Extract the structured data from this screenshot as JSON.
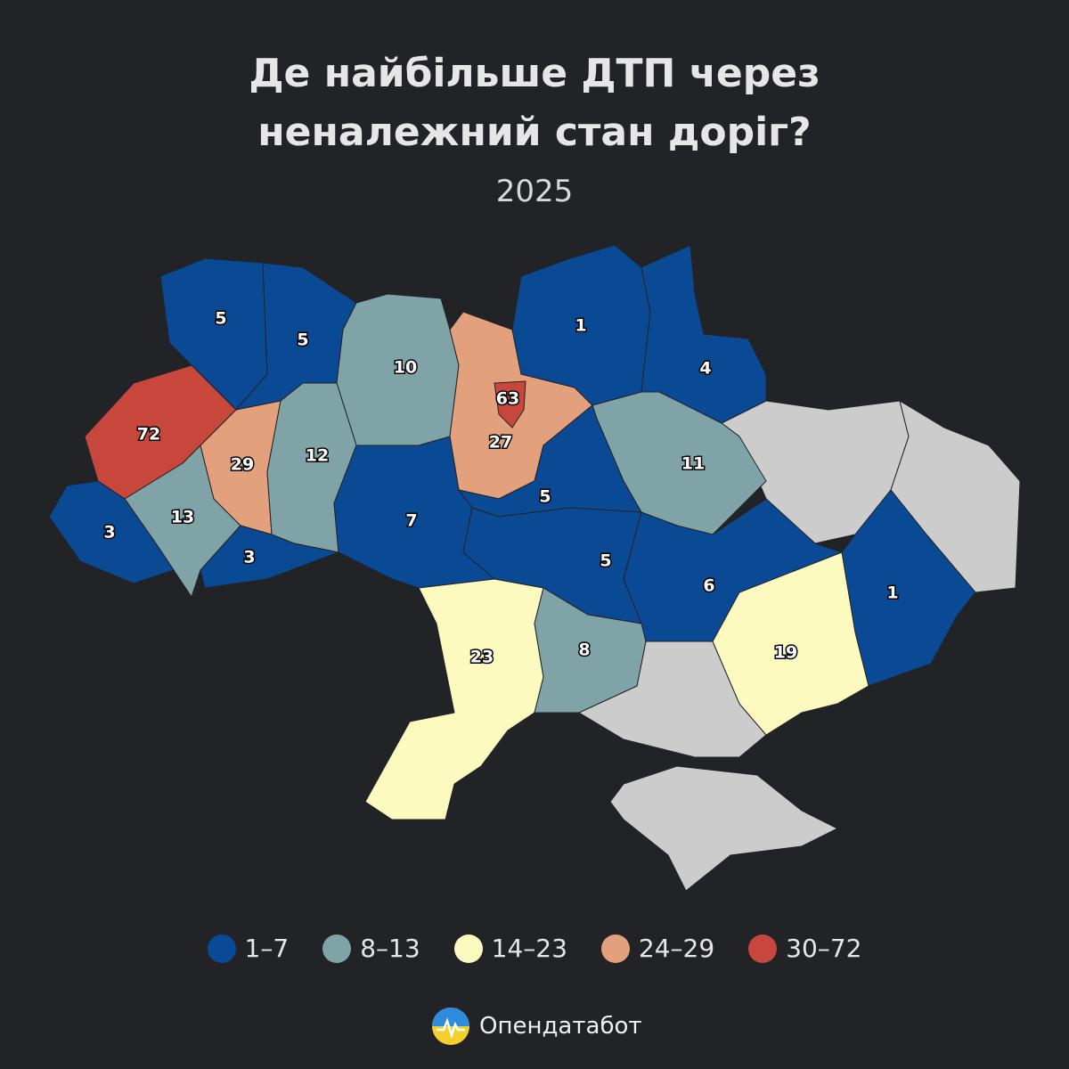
{
  "title": "Де найбільше ДТП через неналежний стан доріг?",
  "subtitle": "2025",
  "regions": [
    {
      "value": 5,
      "color": "#0a4a94"
    },
    {
      "value": 5,
      "color": "#0a4a94"
    },
    {
      "value": 10,
      "color": "#7fa3a6"
    },
    {
      "value": 63,
      "color": "#c8473c"
    },
    {
      "value": 27,
      "color": "#e3a07c"
    },
    {
      "value": 1,
      "color": "#0a4a94"
    },
    {
      "value": 4,
      "color": "#0a4a94"
    },
    {
      "value": 11,
      "color": "#7fa3a6"
    },
    {
      "value": 72,
      "color": "#c8473c"
    },
    {
      "value": 13,
      "color": "#7fa3a6"
    },
    {
      "value": 29,
      "color": "#e3a07c"
    },
    {
      "value": 12,
      "color": "#7fa3a6"
    },
    {
      "value": 3,
      "color": "#0a4a94"
    },
    {
      "value": 3,
      "color": "#0a4a94"
    },
    {
      "value": 7,
      "color": "#0a4a94"
    },
    {
      "value": 5,
      "color": "#0a4a94"
    },
    {
      "value": 5,
      "color": "#0a4a94"
    },
    {
      "value": 6,
      "color": "#0a4a94"
    },
    {
      "value": 1,
      "color": "#0a4a94"
    },
    {
      "value": 23,
      "color": "#fdfac0"
    },
    {
      "value": 8,
      "color": "#7fa3a6"
    },
    {
      "value": 19,
      "color": "#fdfac0"
    }
  ],
  "legend": [
    {
      "label": "1–7",
      "color": "#0a4a94"
    },
    {
      "label": "8–13",
      "color": "#7fa3a6"
    },
    {
      "label": "14–23",
      "color": "#fdfac0"
    },
    {
      "label": "24–29",
      "color": "#e3a07c"
    },
    {
      "label": "30–72",
      "color": "#c8473c"
    }
  ],
  "brand": "Опендатабот"
}
